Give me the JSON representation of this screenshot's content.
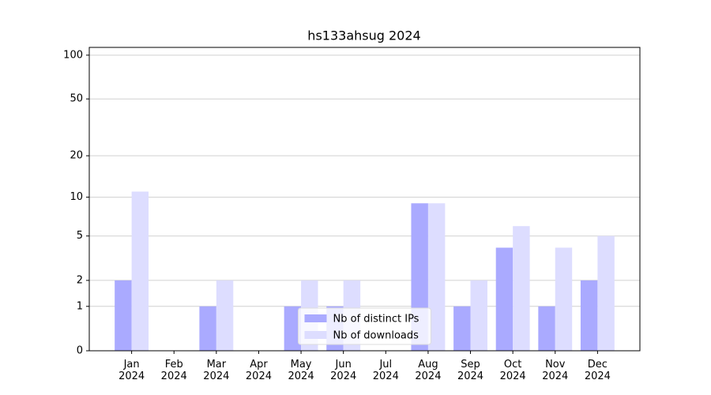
{
  "chart_data": {
    "type": "bar",
    "title": "hs133ahsug 2024",
    "categories": [
      "Jan\n2024",
      "Feb\n2024",
      "Mar\n2024",
      "Apr\n2024",
      "May\n2024",
      "Jun\n2024",
      "Jul\n2024",
      "Aug\n2024",
      "Sep\n2024",
      "Oct\n2024",
      "Nov\n2024",
      "Dec\n2024"
    ],
    "series": [
      {
        "name": "Nb of distinct IPs",
        "color": "#aaaaff",
        "values": [
          2,
          0,
          1,
          0,
          1,
          1,
          0,
          9,
          1,
          4,
          1,
          2
        ]
      },
      {
        "name": "Nb of downloads",
        "color": "#ddddff",
        "values": [
          11,
          0,
          2,
          0,
          2,
          2,
          0,
          9,
          2,
          6,
          4,
          5
        ]
      }
    ],
    "yscale": "log1p",
    "ylim": [
      0,
      113
    ],
    "yticks": [
      0,
      1,
      2,
      5,
      10,
      20,
      50,
      100
    ],
    "grid": true,
    "legend_loc": "lower center"
  }
}
